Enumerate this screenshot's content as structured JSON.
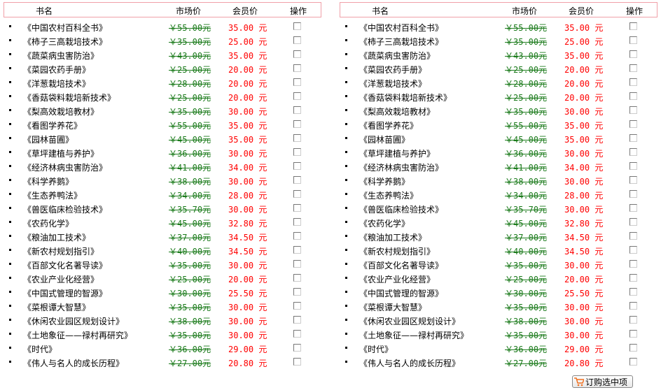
{
  "header": {
    "title": "书名",
    "market_price": "市场价",
    "member_price": "会员价",
    "action": "操作"
  },
  "books": [
    {
      "title": "《中国农村百科全书》",
      "market": "￥55.00元",
      "member": "35.00 元"
    },
    {
      "title": "《柿子三高栽培技术》",
      "market": "￥35.00元",
      "member": "25.00 元"
    },
    {
      "title": "《蔬菜病虫害防治》",
      "market": "￥43.00元",
      "member": "35.00 元"
    },
    {
      "title": "《菜园农药手册》",
      "market": "￥25.00元",
      "member": "20.00 元"
    },
    {
      "title": "《洋葱栽培技术》",
      "market": "￥28.00元",
      "member": "20.00 元"
    },
    {
      "title": "《香菇袋料栽培新技术》",
      "market": "￥25.00元",
      "member": "20.00 元"
    },
    {
      "title": "《梨高效栽培教材》",
      "market": "￥35.00元",
      "member": "30.00 元"
    },
    {
      "title": "《看图学养花》",
      "market": "￥55.00元",
      "member": "35.00 元"
    },
    {
      "title": "《园林苗圃》",
      "market": "￥45.00元",
      "member": "35.00 元"
    },
    {
      "title": "《草坪建植与养护》",
      "market": "￥36.00元",
      "member": "30.00 元"
    },
    {
      "title": "《经济林病虫害防治》",
      "market": "￥41.00元",
      "member": "34.00 元"
    },
    {
      "title": "《科学养鹅》",
      "market": "￥38.00元",
      "member": "30.00 元"
    },
    {
      "title": "《生态养鸭法》",
      "market": "￥34.00元",
      "member": "28.00 元"
    },
    {
      "title": "《兽医临床检验技术》",
      "market": "￥35.70元",
      "member": "30.00 元"
    },
    {
      "title": "《农药化学》",
      "market": "￥45.00元",
      "member": "32.80 元"
    },
    {
      "title": "《粮油加工技术》",
      "market": "￥37.00元",
      "member": "34.50 元"
    },
    {
      "title": "《新农村规划指引》",
      "market": "￥40.00元",
      "member": "34.50 元"
    },
    {
      "title": "《百部文化名著导读》",
      "market": "￥35.00元",
      "member": "30.00 元"
    },
    {
      "title": "《农业产业化经营》",
      "market": "￥25.00元",
      "member": "20.00 元"
    },
    {
      "title": "《中国式管理的智源》",
      "market": "￥30.00元",
      "member": "25.50 元"
    },
    {
      "title": "《菜根谭大智慧》",
      "market": "￥35.00元",
      "member": "30.00 元"
    },
    {
      "title": "《休闲农业园区规划设计》",
      "market": "￥38.00元",
      "member": "30.00 元"
    },
    {
      "title": "《土地象征——禄村再研究》",
      "market": "￥35.00元",
      "member": "30.00 元"
    },
    {
      "title": "《时代》",
      "market": "￥36.00元",
      "member": "29.00 元"
    },
    {
      "title": "《伟人与名人的成长历程》",
      "market": "￥27.00元",
      "member": "20.80 元"
    }
  ],
  "order_button": {
    "label": "订购选中项",
    "icon": "cart-icon"
  },
  "colors": {
    "header_border": "#f0a0a8",
    "market_price": "#1a7a1a",
    "member_price": "#ff0000",
    "cart": "#f07020"
  }
}
